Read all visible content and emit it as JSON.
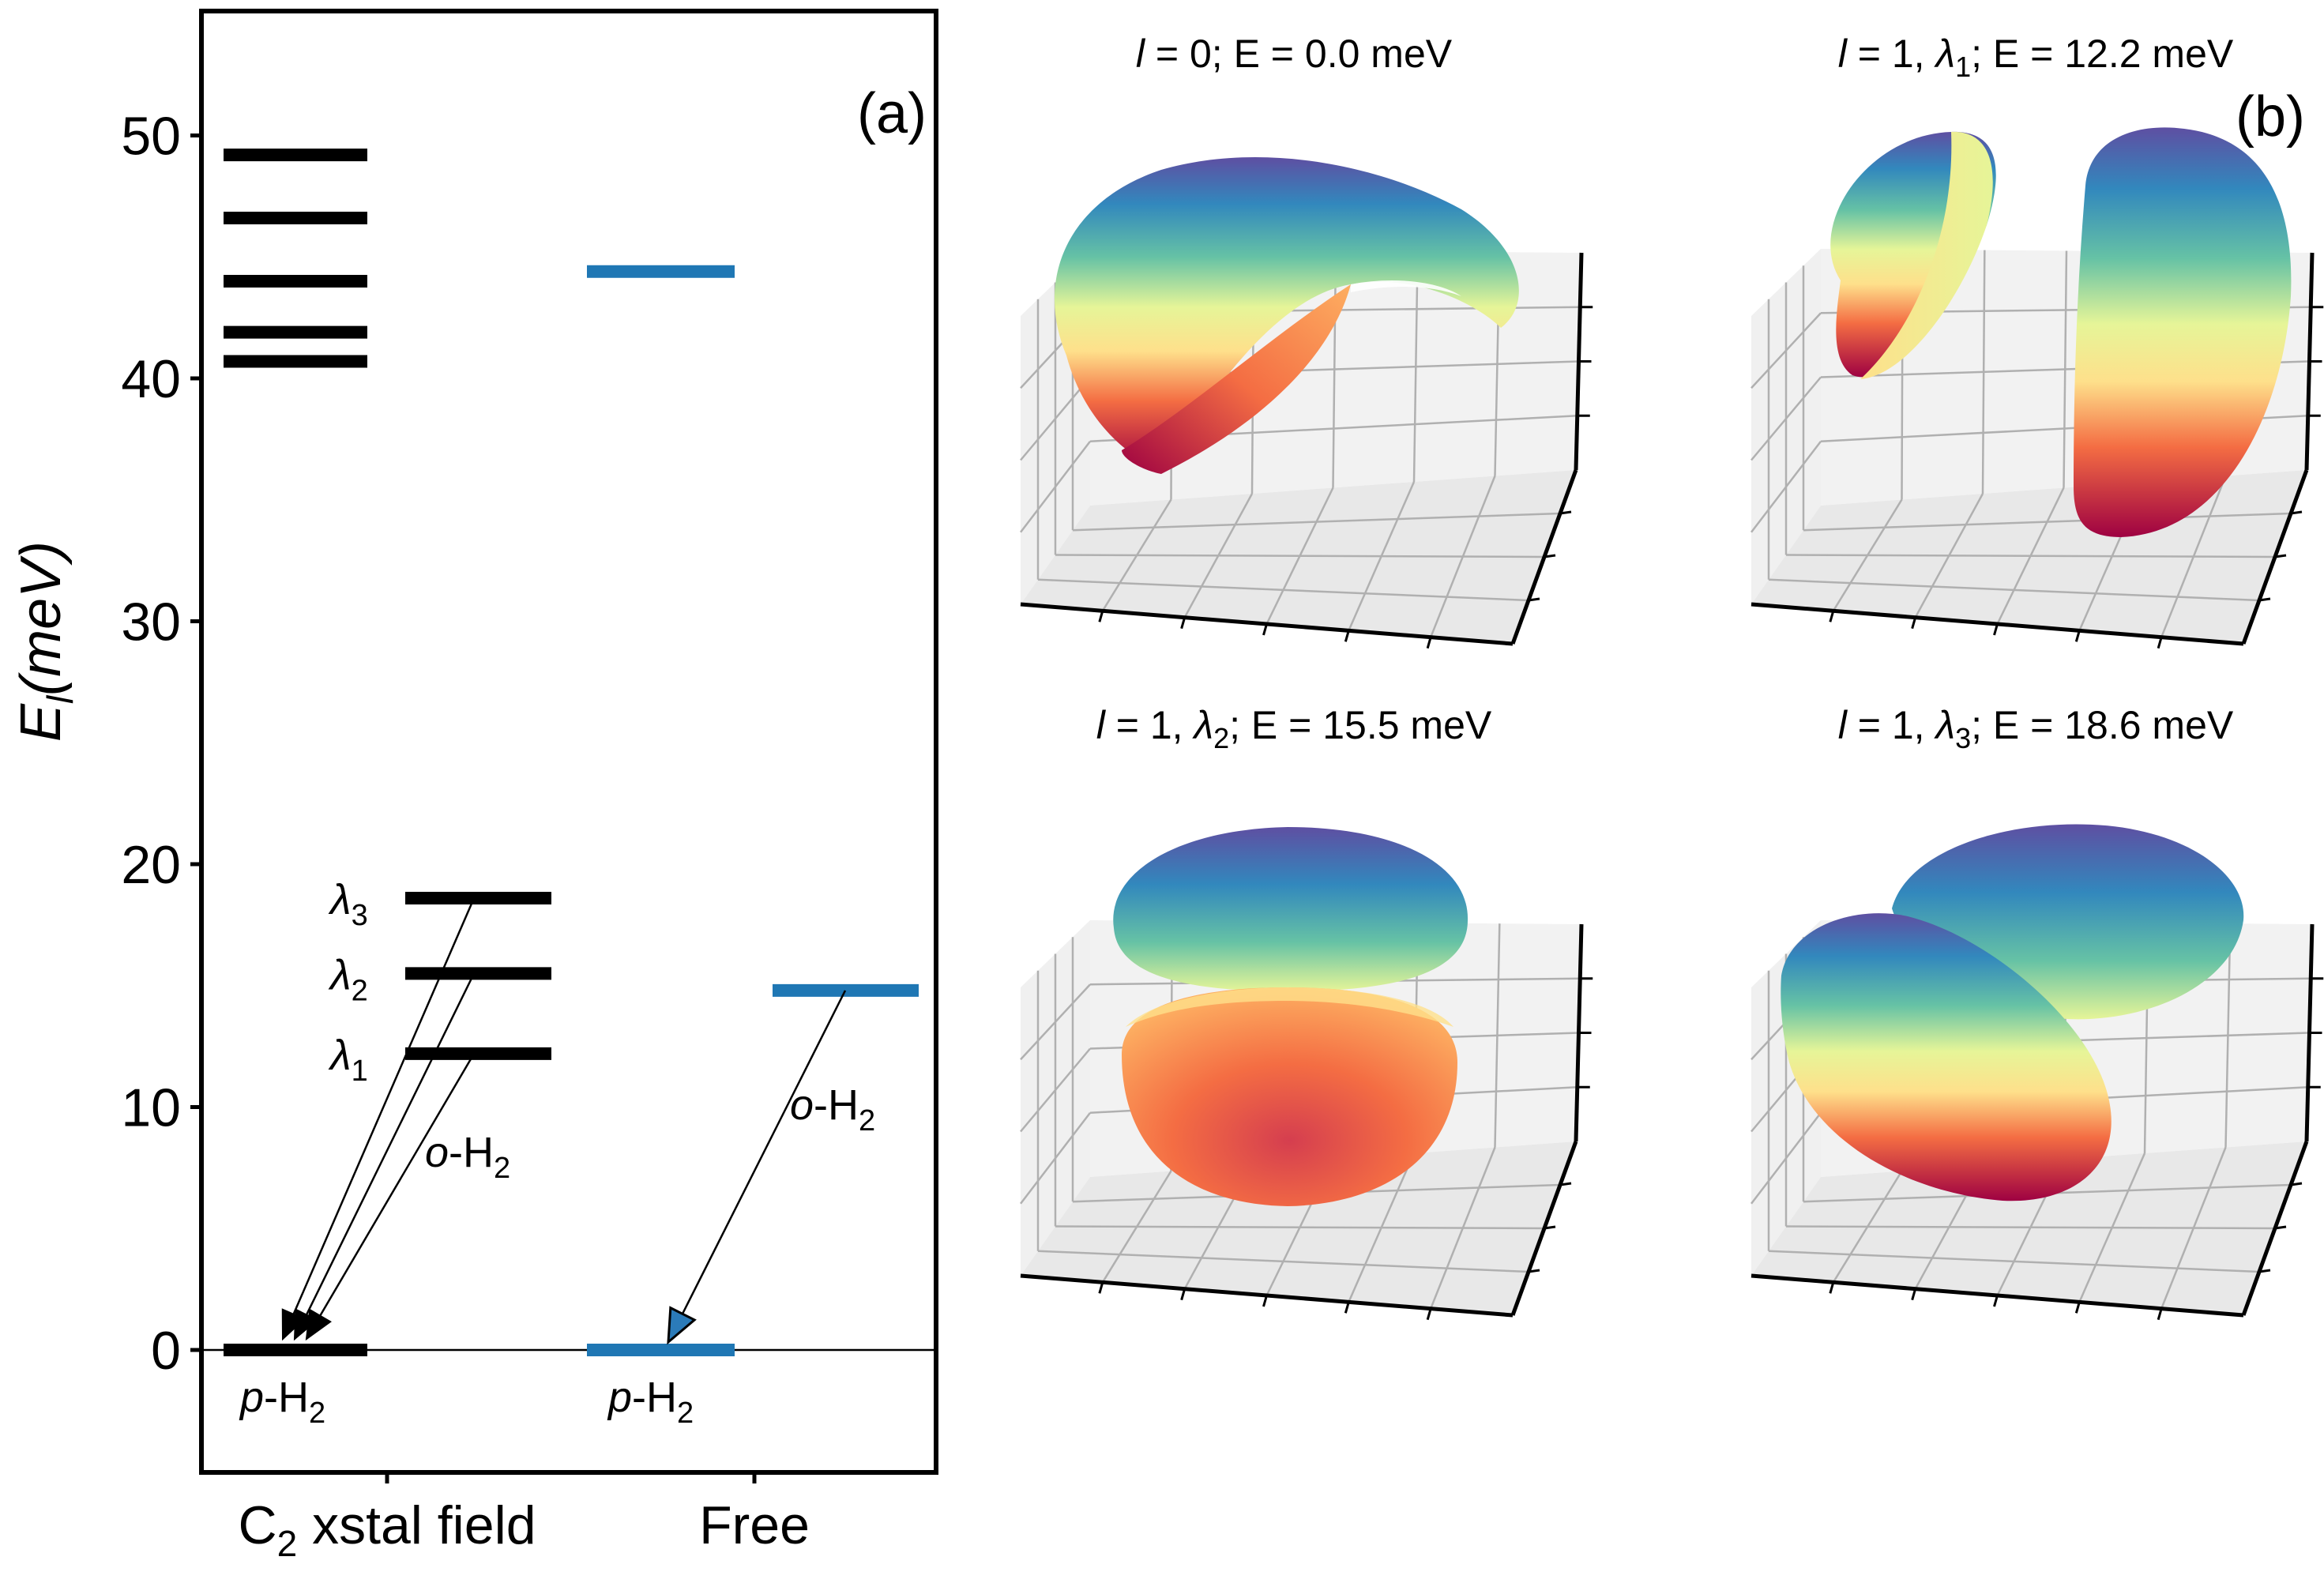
{
  "chart_data": [
    {
      "type": "energy-level-diagram",
      "panel_label": "(a)",
      "ylabel_main": "E",
      "ylabel_sub": "l",
      "ylabel_unit": "(meV)",
      "ylim": [
        -5,
        55
      ],
      "yticks": [
        0,
        10,
        20,
        30,
        40,
        50
      ],
      "categories": [
        "C₂ xstal field",
        "Free"
      ],
      "colors": {
        "C₂ xstal field": "#000000",
        "Free": "#1f77b4"
      },
      "series": [
        {
          "name": "C₂ xstal field",
          "levels": [
            0.0,
            12.2,
            15.5,
            18.6,
            40.7,
            41.9,
            44.0,
            46.6,
            49.2
          ]
        },
        {
          "name": "Free",
          "levels": [
            0.0,
            14.8,
            44.4
          ]
        }
      ],
      "level_labels": [
        {
          "series": "C₂ xstal field",
          "energy": 18.6,
          "sym": "λ",
          "sub": "3"
        },
        {
          "series": "C₂ xstal field",
          "energy": 15.5,
          "sym": "λ",
          "sub": "2"
        },
        {
          "series": "C₂ xstal field",
          "energy": 12.2,
          "sym": "λ",
          "sub": "1"
        }
      ],
      "state_labels": [
        {
          "series": "C₂ xstal field",
          "prefix": "p",
          "main": "-H",
          "sub": "2"
        },
        {
          "series": "Free",
          "prefix": "p",
          "main": "-H",
          "sub": "2"
        }
      ],
      "transition_labels": [
        {
          "series": "C₂ xstal field",
          "prefix": "o",
          "main": "-H",
          "sub": "2"
        },
        {
          "series": "Free",
          "prefix": "o",
          "main": "-H",
          "sub": "2"
        }
      ],
      "transitions": [
        {
          "series": "C₂ xstal field",
          "from": 18.6,
          "to": 0.0
        },
        {
          "series": "C₂ xstal field",
          "from": 15.5,
          "to": 0.0
        },
        {
          "series": "C₂ xstal field",
          "from": 12.2,
          "to": 0.0
        },
        {
          "series": "Free",
          "from": 14.8,
          "to": 0.0
        }
      ]
    },
    {
      "type": "3d-surface",
      "panel_label": "(b)",
      "colormap": "Spectral",
      "subplots": [
        {
          "l": "l",
          "l_value": "0",
          "lambda": "",
          "E": "0.0",
          "unit": "meV",
          "shape": "ground"
        },
        {
          "l": "l",
          "l_value": "1",
          "lambda": "λ",
          "lambda_sub": "1",
          "E": "12.2",
          "unit": "meV",
          "shape": "lobes-x"
        },
        {
          "l": "l",
          "l_value": "1",
          "lambda": "λ",
          "lambda_sub": "2",
          "E": "15.5",
          "unit": "meV",
          "shape": "lobes-z"
        },
        {
          "l": "l",
          "l_value": "1",
          "lambda": "λ",
          "lambda_sub": "3",
          "E": "18.6",
          "unit": "meV",
          "shape": "lobes-diag"
        }
      ]
    }
  ]
}
